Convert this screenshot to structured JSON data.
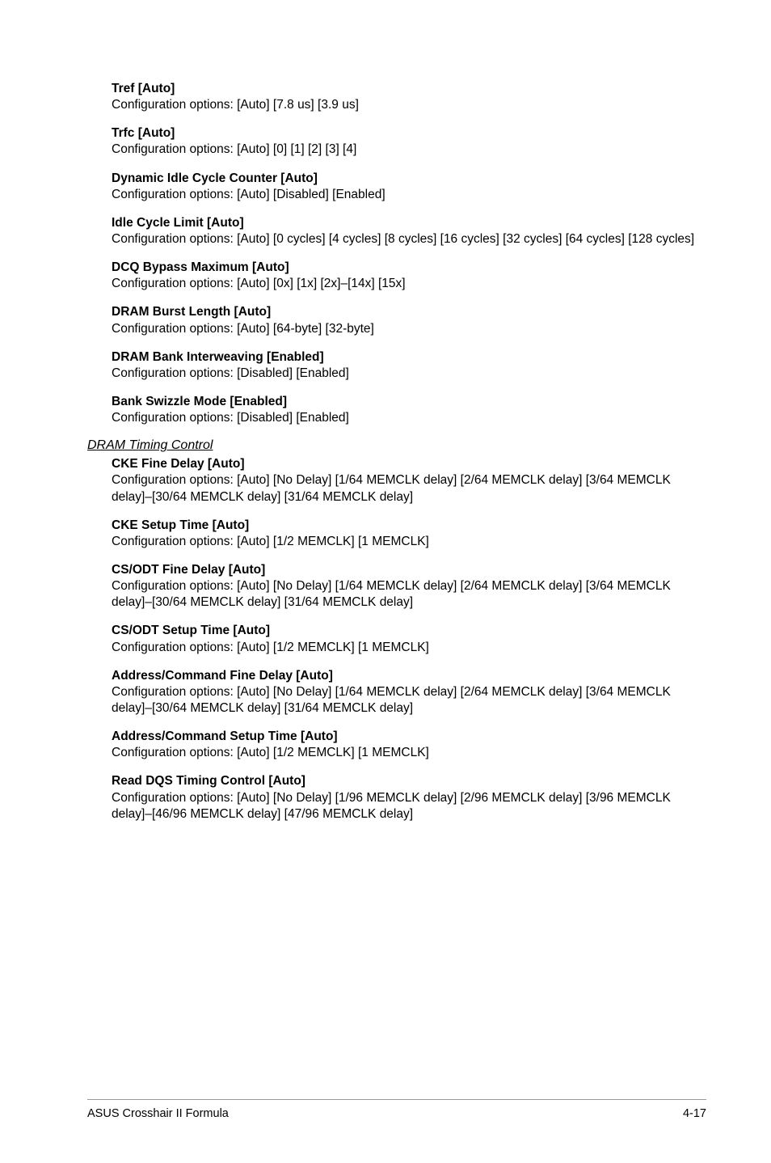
{
  "sections": {
    "tref": {
      "heading": "Tref [Auto]",
      "body": "Configuration options: [Auto] [7.8 us] [3.9 us]"
    },
    "trfc": {
      "heading": "Trfc [Auto]",
      "body": "Configuration options: [Auto] [0] [1] [2] [3] [4]"
    },
    "dynamic_idle": {
      "heading": "Dynamic Idle Cycle Counter [Auto]",
      "body": "Configuration options: [Auto] [Disabled] [Enabled]"
    },
    "idle_cycle": {
      "heading": "Idle Cycle Limit [Auto]",
      "body": "Configuration options: [Auto] [0 cycles] [4 cycles] [8 cycles] [16 cycles] [32 cycles] [64 cycles] [128 cycles]"
    },
    "dcq_bypass": {
      "heading": "DCQ Bypass Maximum [Auto]",
      "body": "Configuration options: [Auto] [0x] [1x] [2x]–[14x] [15x]"
    },
    "dram_burst": {
      "heading": "DRAM Burst Length [Auto]",
      "body": "Configuration options: [Auto] [64-byte] [32-byte]"
    },
    "dram_bank": {
      "heading": "DRAM Bank Interweaving [Enabled]",
      "body": "Configuration options: [Disabled] [Enabled]"
    },
    "bank_swizzle": {
      "heading": "Bank Swizzle Mode [Enabled]",
      "body": "Configuration options: [Disabled] [Enabled]"
    }
  },
  "dram_timing_header": "DRAM Timing Control",
  "dram_timing": {
    "cke_fine": {
      "heading": "CKE Fine Delay [Auto]",
      "body": "Configuration options: [Auto] [No Delay] [1/64 MEMCLK delay] [2/64 MEMCLK delay] [3/64 MEMCLK delay]–[30/64 MEMCLK delay] [31/64 MEMCLK delay]"
    },
    "cke_setup": {
      "heading": "CKE Setup Time [Auto]",
      "body": "Configuration options: [Auto] [1/2 MEMCLK] [1 MEMCLK]"
    },
    "csodt_fine": {
      "heading": "CS/ODT Fine Delay [Auto]",
      "body": "Configuration options: [Auto] [No Delay] [1/64 MEMCLK delay] [2/64 MEMCLK delay] [3/64 MEMCLK delay]–[30/64 MEMCLK delay] [31/64 MEMCLK delay]"
    },
    "csodt_setup": {
      "heading": "CS/ODT Setup Time [Auto]",
      "body": "Configuration options: [Auto] [1/2 MEMCLK] [1 MEMCLK]"
    },
    "addr_fine": {
      "heading": "Address/Command Fine Delay [Auto]",
      "body": "Configuration options: [Auto] [No Delay] [1/64 MEMCLK delay] [2/64 MEMCLK delay] [3/64 MEMCLK delay]–[30/64 MEMCLK delay] [31/64 MEMCLK delay]"
    },
    "addr_setup": {
      "heading": "Address/Command Setup Time [Auto]",
      "body": "Configuration options: [Auto] [1/2 MEMCLK] [1 MEMCLK]"
    },
    "read_dqs": {
      "heading": "Read DQS Timing Control [Auto]",
      "body": "Configuration options: [Auto] [No Delay] [1/96 MEMCLK delay] [2/96 MEMCLK delay] [3/96 MEMCLK delay]–[46/96 MEMCLK delay] [47/96 MEMCLK delay]"
    }
  },
  "footer": {
    "left": "ASUS Crosshair II Formula",
    "right": "4-17"
  }
}
